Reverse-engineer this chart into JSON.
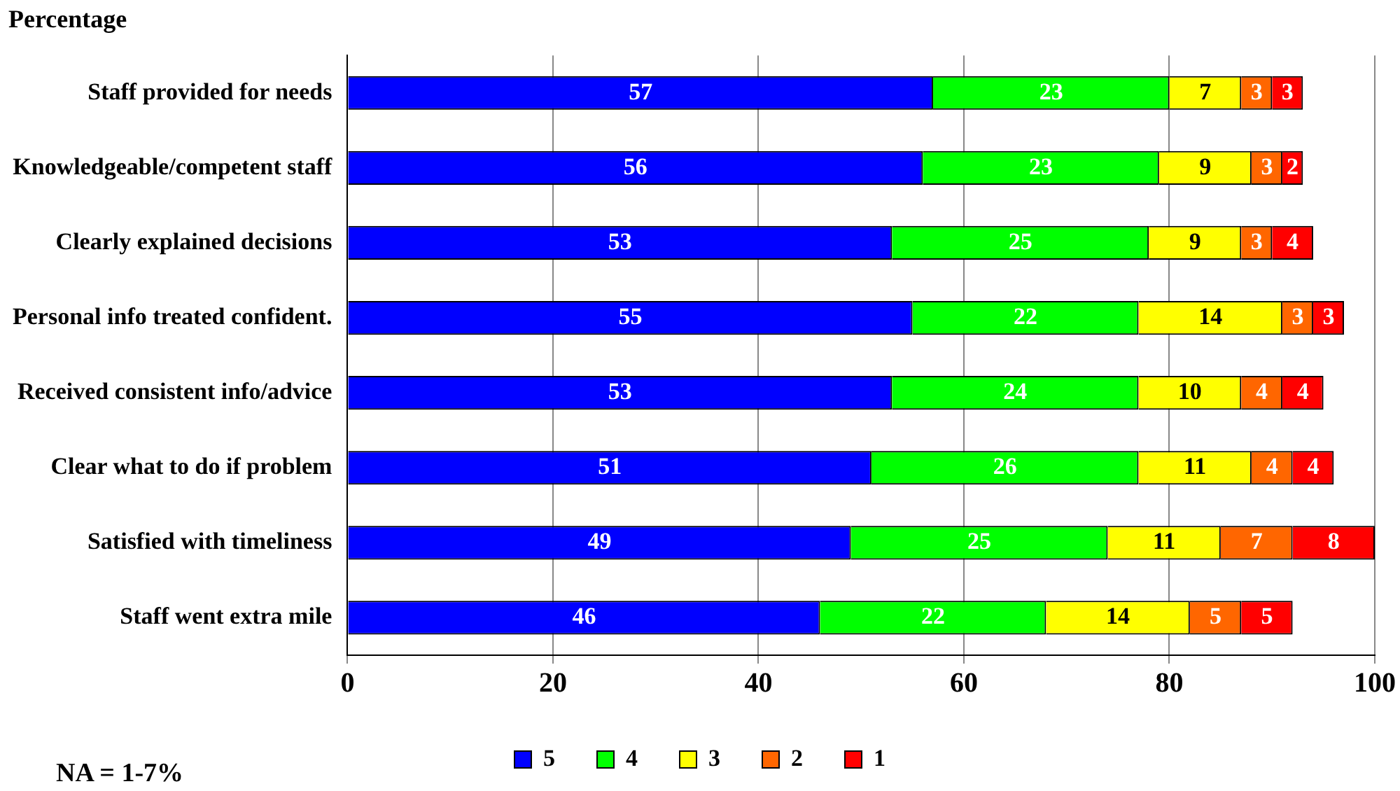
{
  "chart_data": {
    "type": "bar",
    "orientation": "horizontal",
    "stacked": true,
    "title": "Percentage",
    "annotations": [
      "NA = 1-7%"
    ],
    "categories": [
      "Staff provided for needs",
      "Knowledgeable/competent staff",
      "Clearly explained decisions",
      "Personal info treated confident.",
      "Received consistent info/advice",
      "Clear what to do if problem",
      "Satisfied with timeliness",
      "Staff went extra mile"
    ],
    "series": [
      {
        "name": "5",
        "color": "#0000ff",
        "values": [
          57,
          56,
          53,
          55,
          53,
          51,
          49,
          46
        ]
      },
      {
        "name": "4",
        "color": "#00ff00",
        "values": [
          23,
          23,
          25,
          22,
          24,
          26,
          25,
          22
        ]
      },
      {
        "name": "3",
        "color": "#ffff00",
        "values": [
          7,
          9,
          9,
          14,
          10,
          11,
          11,
          14
        ]
      },
      {
        "name": "2",
        "color": "#ff6600",
        "values": [
          3,
          3,
          3,
          3,
          4,
          4,
          7,
          5
        ]
      },
      {
        "name": "1",
        "color": "#ff0000",
        "values": [
          3,
          2,
          4,
          3,
          4,
          4,
          8,
          5
        ]
      }
    ],
    "xlim": [
      0,
      100
    ],
    "xticks": [
      0,
      20,
      40,
      60,
      80,
      100
    ],
    "grid": "x",
    "legend": "bottom",
    "data_labels": true
  }
}
